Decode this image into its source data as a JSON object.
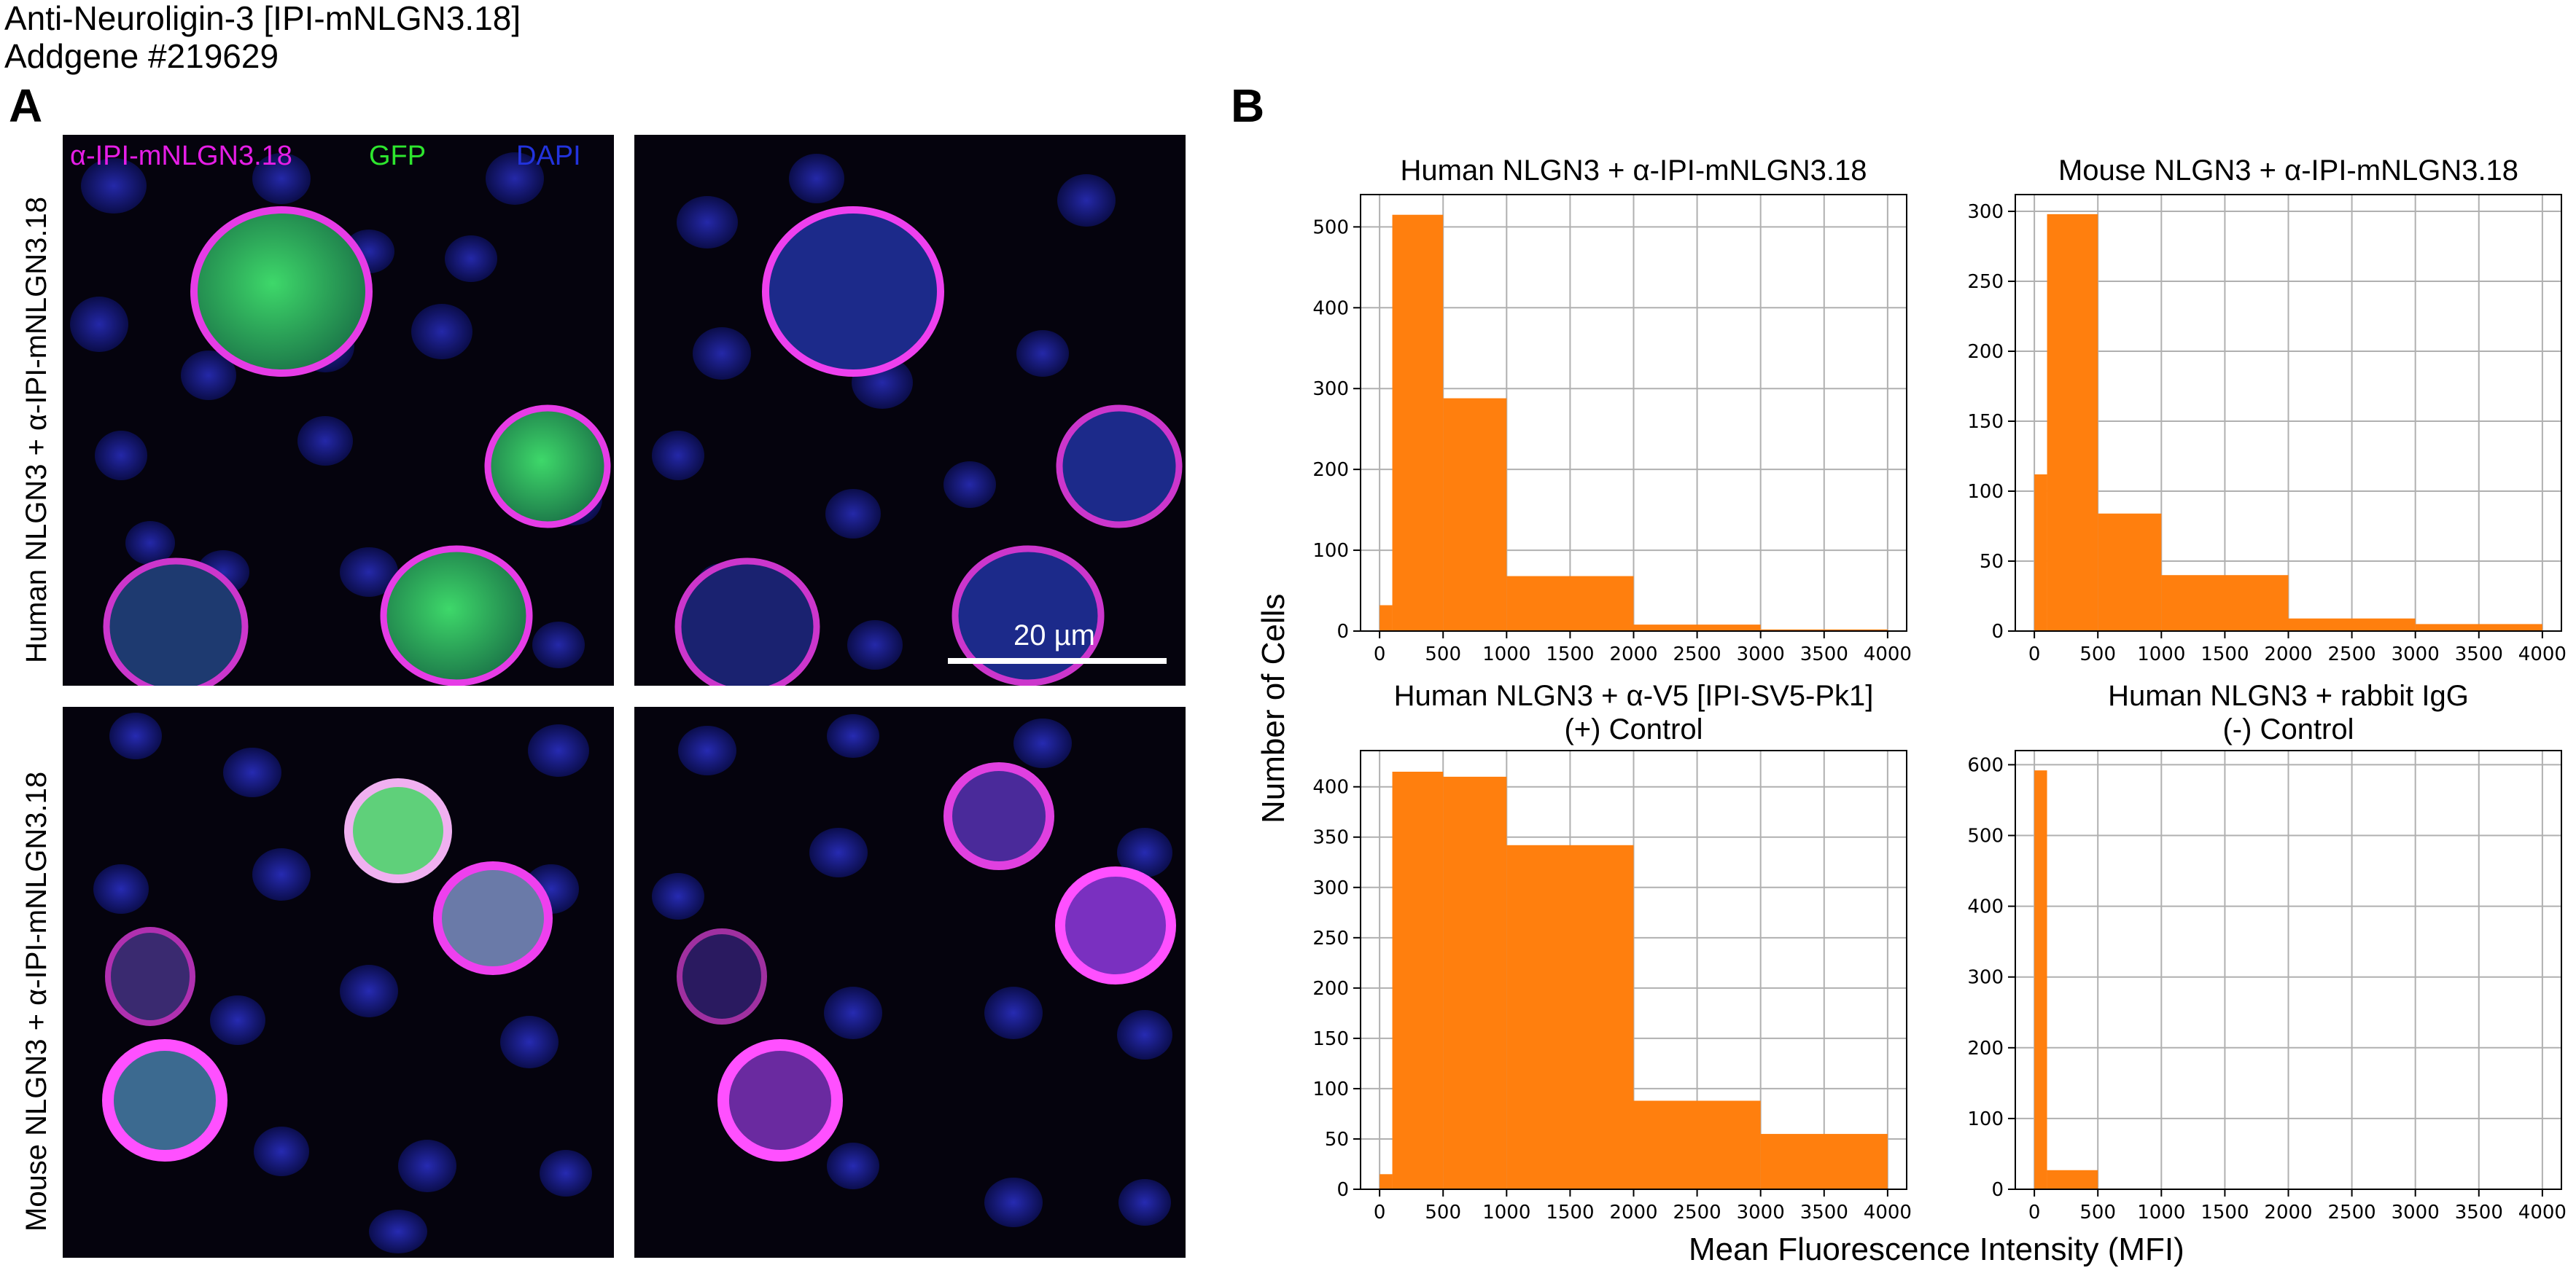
{
  "header": {
    "title": "Anti-Neuroligin-3 [IPI-mNLGN3.18]",
    "catalog": "Addgene #219629"
  },
  "panel_a": {
    "letter": "A",
    "channels": [
      {
        "label": "α-IPI-mNLGN3.18",
        "color": "#e61ee6"
      },
      {
        "label": "GFP",
        "color": "#2ee62e"
      },
      {
        "label": "DAPI",
        "color": "#2233dd"
      }
    ],
    "row_labels": [
      "Human NLGN3 + α-IPI-mNLGN3.18",
      "Mouse NLGN3 + α-IPI-mNLGN3.18"
    ],
    "scale_bar": "20 µm"
  },
  "panel_b": {
    "letter": "B",
    "ylabel": "Number of Cells",
    "xlabel": "Mean Fluorescence Intensity (MFI)"
  },
  "chart_data": [
    {
      "type": "bar",
      "title": "Human NLGN3 + α-IPI-mNLGN3.18",
      "bins": [
        [
          0,
          100
        ],
        [
          100,
          500
        ],
        [
          500,
          1000
        ],
        [
          1000,
          2000
        ],
        [
          2000,
          3000
        ],
        [
          3000,
          4000
        ]
      ],
      "values": [
        32,
        515,
        288,
        68,
        8,
        2
      ],
      "xlim": [
        -150,
        4150
      ],
      "ylim": [
        0,
        540
      ],
      "xticks": [
        0,
        500,
        1000,
        1500,
        2000,
        2500,
        3000,
        3500,
        4000
      ],
      "yticks": [
        0,
        100,
        200,
        300,
        400,
        500
      ],
      "ytick_labels": [
        "0",
        "100",
        "200",
        "300",
        "400",
        "500"
      ],
      "grid": true,
      "color": "#ff7f0e"
    },
    {
      "type": "bar",
      "title": "Mouse NLGN3 + α-IPI-mNLGN3.18",
      "bins": [
        [
          0,
          100
        ],
        [
          100,
          500
        ],
        [
          500,
          1000
        ],
        [
          1000,
          2000
        ],
        [
          2000,
          3000
        ],
        [
          3000,
          4000
        ]
      ],
      "values": [
        112,
        298,
        84,
        40,
        9,
        5
      ],
      "xlim": [
        -150,
        4150
      ],
      "ylim": [
        0,
        312
      ],
      "xticks": [
        0,
        500,
        1000,
        1500,
        2000,
        2500,
        3000,
        3500,
        4000
      ],
      "yticks": [
        0,
        50,
        100,
        150,
        200,
        250,
        300
      ],
      "ytick_labels": [
        "0",
        "50",
        "100",
        "150",
        "200",
        "250",
        "300"
      ],
      "grid": true,
      "color": "#ff7f0e"
    },
    {
      "type": "bar",
      "title": "Human NLGN3 + α-V5 [IPI-SV5-Pk1]",
      "subtitle": "(+) Control",
      "bins": [
        [
          0,
          100
        ],
        [
          100,
          500
        ],
        [
          500,
          1000
        ],
        [
          1000,
          2000
        ],
        [
          2000,
          3000
        ],
        [
          3000,
          4000
        ]
      ],
      "values": [
        15,
        415,
        410,
        342,
        88,
        55
      ],
      "xlim": [
        -150,
        4150
      ],
      "ylim": [
        0,
        436
      ],
      "xticks": [
        0,
        500,
        1000,
        1500,
        2000,
        2500,
        3000,
        3500,
        4000
      ],
      "yticks": [
        0,
        50,
        100,
        150,
        200,
        250,
        300,
        350,
        400
      ],
      "ytick_labels": [
        "0",
        "50",
        "100",
        "150",
        "200",
        "250",
        "300",
        "350",
        "400"
      ],
      "grid": true,
      "color": "#ff7f0e"
    },
    {
      "type": "bar",
      "title": "Human NLGN3 + rabbit IgG",
      "subtitle": "(-) Control",
      "bins": [
        [
          0,
          100
        ],
        [
          100,
          500
        ],
        [
          500,
          1000
        ],
        [
          1000,
          2000
        ],
        [
          2000,
          3000
        ],
        [
          3000,
          4000
        ]
      ],
      "values": [
        592,
        27,
        0,
        0,
        0,
        0
      ],
      "xlim": [
        -150,
        4150
      ],
      "ylim": [
        0,
        620
      ],
      "xticks": [
        0,
        500,
        1000,
        1500,
        2000,
        2500,
        3000,
        3500,
        4000
      ],
      "yticks": [
        0,
        100,
        200,
        300,
        400,
        500,
        600
      ],
      "ytick_labels": [
        "0",
        "100",
        "200",
        "300",
        "400",
        "500",
        "600"
      ],
      "grid": true,
      "color": "#ff7f0e"
    }
  ]
}
